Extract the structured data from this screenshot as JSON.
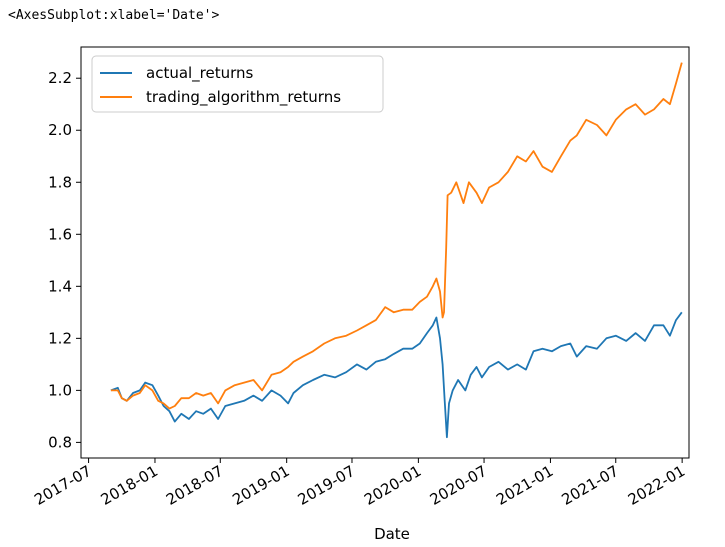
{
  "repr_text": "<AxesSubplot:xlabel='Date'>",
  "chart_data": {
    "type": "line",
    "title": "",
    "xlabel": "Date",
    "ylabel": "",
    "xlim": [
      "2017-06-10",
      "2022-01-20"
    ],
    "ylim": [
      0.74,
      2.32
    ],
    "x_ticks": [
      "2017-07",
      "2018-01",
      "2018-07",
      "2019-01",
      "2019-07",
      "2020-01",
      "2020-07",
      "2021-01",
      "2021-07",
      "2022-01"
    ],
    "y_ticks": [
      0.8,
      1.0,
      1.2,
      1.4,
      1.6,
      1.8,
      2.0,
      2.2
    ],
    "y_tick_labels": [
      "0.8",
      "1.0",
      "1.2",
      "1.4",
      "1.6",
      "1.8",
      "2.0",
      "2.2"
    ],
    "grid": false,
    "legend": "top-left",
    "series": [
      {
        "name": "actual_returns",
        "color": "#1f77b4",
        "points": [
          [
            "2017-09-01",
            1.0
          ],
          [
            "2017-09-20",
            1.01
          ],
          [
            "2017-10-01",
            0.97
          ],
          [
            "2017-10-15",
            0.96
          ],
          [
            "2017-11-01",
            0.99
          ],
          [
            "2017-11-20",
            1.0
          ],
          [
            "2017-12-05",
            1.03
          ],
          [
            "2017-12-25",
            1.02
          ],
          [
            "2018-01-10",
            0.98
          ],
          [
            "2018-01-25",
            0.94
          ],
          [
            "2018-02-10",
            0.92
          ],
          [
            "2018-02-25",
            0.88
          ],
          [
            "2018-03-15",
            0.91
          ],
          [
            "2018-04-05",
            0.89
          ],
          [
            "2018-04-25",
            0.92
          ],
          [
            "2018-05-15",
            0.91
          ],
          [
            "2018-06-05",
            0.93
          ],
          [
            "2018-06-25",
            0.89
          ],
          [
            "2018-07-15",
            0.94
          ],
          [
            "2018-08-10",
            0.95
          ],
          [
            "2018-09-05",
            0.96
          ],
          [
            "2018-10-01",
            0.98
          ],
          [
            "2018-10-25",
            0.96
          ],
          [
            "2018-11-20",
            1.0
          ],
          [
            "2018-12-15",
            0.98
          ],
          [
            "2019-01-05",
            0.95
          ],
          [
            "2019-01-20",
            0.99
          ],
          [
            "2019-02-15",
            1.02
          ],
          [
            "2019-03-15",
            1.04
          ],
          [
            "2019-04-15",
            1.06
          ],
          [
            "2019-05-15",
            1.05
          ],
          [
            "2019-06-15",
            1.07
          ],
          [
            "2019-07-15",
            1.1
          ],
          [
            "2019-08-10",
            1.08
          ],
          [
            "2019-09-05",
            1.11
          ],
          [
            "2019-10-01",
            1.12
          ],
          [
            "2019-10-25",
            1.14
          ],
          [
            "2019-11-20",
            1.16
          ],
          [
            "2019-12-15",
            1.16
          ],
          [
            "2020-01-05",
            1.18
          ],
          [
            "2020-01-25",
            1.22
          ],
          [
            "2020-02-10",
            1.25
          ],
          [
            "2020-02-20",
            1.28
          ],
          [
            "2020-03-01",
            1.2
          ],
          [
            "2020-03-08",
            1.1
          ],
          [
            "2020-03-14",
            0.96
          ],
          [
            "2020-03-20",
            0.82
          ],
          [
            "2020-03-26",
            0.95
          ],
          [
            "2020-04-05",
            1.0
          ],
          [
            "2020-04-20",
            1.04
          ],
          [
            "2020-05-10",
            1.0
          ],
          [
            "2020-05-25",
            1.06
          ],
          [
            "2020-06-10",
            1.09
          ],
          [
            "2020-06-25",
            1.05
          ],
          [
            "2020-07-15",
            1.09
          ],
          [
            "2020-08-10",
            1.11
          ],
          [
            "2020-09-05",
            1.08
          ],
          [
            "2020-10-01",
            1.1
          ],
          [
            "2020-10-25",
            1.08
          ],
          [
            "2020-11-15",
            1.15
          ],
          [
            "2020-12-10",
            1.16
          ],
          [
            "2021-01-05",
            1.15
          ],
          [
            "2021-01-30",
            1.17
          ],
          [
            "2021-02-25",
            1.18
          ],
          [
            "2021-03-15",
            1.13
          ],
          [
            "2021-04-10",
            1.17
          ],
          [
            "2021-05-10",
            1.16
          ],
          [
            "2021-06-05",
            1.2
          ],
          [
            "2021-07-01",
            1.21
          ],
          [
            "2021-07-30",
            1.19
          ],
          [
            "2021-08-25",
            1.22
          ],
          [
            "2021-09-20",
            1.19
          ],
          [
            "2021-10-15",
            1.25
          ],
          [
            "2021-11-10",
            1.25
          ],
          [
            "2021-11-28",
            1.21
          ],
          [
            "2021-12-15",
            1.27
          ],
          [
            "2021-12-31",
            1.3
          ]
        ]
      },
      {
        "name": "trading_algorithm_returns",
        "color": "#ff7f0e",
        "points": [
          [
            "2017-09-01",
            1.0
          ],
          [
            "2017-09-20",
            1.0
          ],
          [
            "2017-10-01",
            0.97
          ],
          [
            "2017-10-15",
            0.96
          ],
          [
            "2017-11-01",
            0.98
          ],
          [
            "2017-11-20",
            0.99
          ],
          [
            "2017-12-05",
            1.02
          ],
          [
            "2017-12-25",
            1.0
          ],
          [
            "2018-01-10",
            0.96
          ],
          [
            "2018-01-25",
            0.95
          ],
          [
            "2018-02-10",
            0.93
          ],
          [
            "2018-02-25",
            0.94
          ],
          [
            "2018-03-15",
            0.97
          ],
          [
            "2018-04-05",
            0.97
          ],
          [
            "2018-04-25",
            0.99
          ],
          [
            "2018-05-15",
            0.98
          ],
          [
            "2018-06-05",
            0.99
          ],
          [
            "2018-06-25",
            0.95
          ],
          [
            "2018-07-15",
            1.0
          ],
          [
            "2018-08-10",
            1.02
          ],
          [
            "2018-09-05",
            1.03
          ],
          [
            "2018-10-01",
            1.04
          ],
          [
            "2018-10-25",
            1.0
          ],
          [
            "2018-11-20",
            1.06
          ],
          [
            "2018-12-15",
            1.07
          ],
          [
            "2019-01-05",
            1.09
          ],
          [
            "2019-01-20",
            1.11
          ],
          [
            "2019-02-15",
            1.13
          ],
          [
            "2019-03-15",
            1.15
          ],
          [
            "2019-04-15",
            1.18
          ],
          [
            "2019-05-15",
            1.2
          ],
          [
            "2019-06-15",
            1.21
          ],
          [
            "2019-07-15",
            1.23
          ],
          [
            "2019-08-10",
            1.25
          ],
          [
            "2019-09-05",
            1.27
          ],
          [
            "2019-10-01",
            1.32
          ],
          [
            "2019-10-25",
            1.3
          ],
          [
            "2019-11-20",
            1.31
          ],
          [
            "2019-12-15",
            1.31
          ],
          [
            "2020-01-05",
            1.34
          ],
          [
            "2020-01-25",
            1.36
          ],
          [
            "2020-02-10",
            1.4
          ],
          [
            "2020-02-20",
            1.43
          ],
          [
            "2020-03-01",
            1.38
          ],
          [
            "2020-03-08",
            1.28
          ],
          [
            "2020-03-12",
            1.3
          ],
          [
            "2020-03-18",
            1.55
          ],
          [
            "2020-03-22",
            1.75
          ],
          [
            "2020-04-01",
            1.76
          ],
          [
            "2020-04-15",
            1.8
          ],
          [
            "2020-05-05",
            1.72
          ],
          [
            "2020-05-20",
            1.8
          ],
          [
            "2020-06-10",
            1.76
          ],
          [
            "2020-06-25",
            1.72
          ],
          [
            "2020-07-15",
            1.78
          ],
          [
            "2020-08-10",
            1.8
          ],
          [
            "2020-09-05",
            1.84
          ],
          [
            "2020-10-01",
            1.9
          ],
          [
            "2020-10-25",
            1.88
          ],
          [
            "2020-11-15",
            1.92
          ],
          [
            "2020-12-10",
            1.86
          ],
          [
            "2021-01-05",
            1.84
          ],
          [
            "2021-01-30",
            1.9
          ],
          [
            "2021-02-25",
            1.96
          ],
          [
            "2021-03-15",
            1.98
          ],
          [
            "2021-04-10",
            2.04
          ],
          [
            "2021-05-10",
            2.02
          ],
          [
            "2021-06-05",
            1.98
          ],
          [
            "2021-07-01",
            2.04
          ],
          [
            "2021-07-30",
            2.08
          ],
          [
            "2021-08-25",
            2.1
          ],
          [
            "2021-09-20",
            2.06
          ],
          [
            "2021-10-15",
            2.08
          ],
          [
            "2021-11-10",
            2.12
          ],
          [
            "2021-11-28",
            2.1
          ],
          [
            "2021-12-15",
            2.18
          ],
          [
            "2021-12-31",
            2.26
          ]
        ]
      }
    ]
  }
}
